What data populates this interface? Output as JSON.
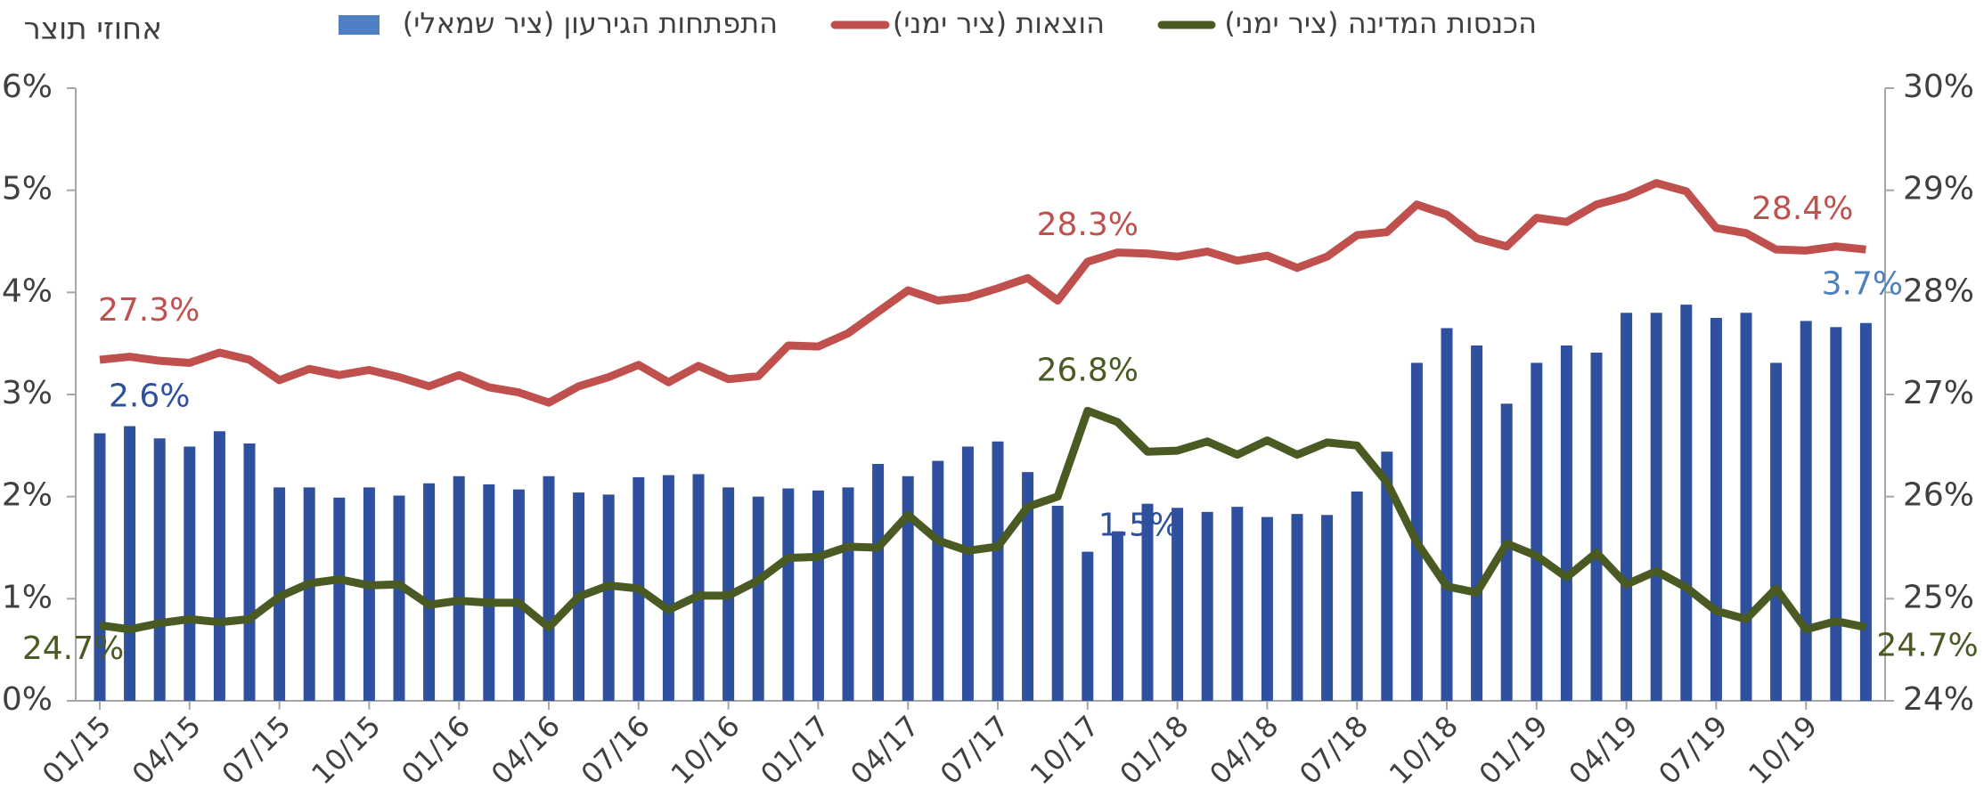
{
  "chart_data": {
    "type": "bar",
    "y_axis_label": "אחוזי תוצר",
    "categories": [
      "01/15",
      null,
      null,
      "04/15",
      null,
      null,
      "07/15",
      null,
      null,
      "10/15",
      null,
      null,
      "01/16",
      null,
      null,
      "04/16",
      null,
      null,
      "07/16",
      null,
      null,
      "10/16",
      null,
      null,
      "01/17",
      null,
      null,
      "04/17",
      null,
      null,
      "07/17",
      null,
      null,
      "10/17",
      null,
      null,
      "01/18",
      null,
      null,
      "04/18",
      null,
      null,
      "07/18",
      null,
      null,
      "10/18",
      null,
      null,
      "01/19",
      null,
      null,
      "04/19",
      null,
      null,
      "07/19",
      null,
      null,
      "10/19",
      null,
      null
    ],
    "series": [
      {
        "name": "התפתחות הגירעון (ציר שמאלי)",
        "type": "bar",
        "axis": "y",
        "color": "#2f4f9f",
        "legend_color": "#4f7fc5",
        "values": [
          2.62,
          2.69,
          2.57,
          2.49,
          2.64,
          2.52,
          2.09,
          2.09,
          1.99,
          2.09,
          2.01,
          2.13,
          2.2,
          2.12,
          2.07,
          2.2,
          2.04,
          2.02,
          2.19,
          2.21,
          2.22,
          2.09,
          2.0,
          2.08,
          2.06,
          2.09,
          2.32,
          2.2,
          2.35,
          2.49,
          2.54,
          2.24,
          1.91,
          1.46,
          1.66,
          1.93,
          1.89,
          1.85,
          1.9,
          1.8,
          1.83,
          1.82,
          2.05,
          2.44,
          3.31,
          3.65,
          3.48,
          2.91,
          3.31,
          3.48,
          3.41,
          3.8,
          3.8,
          3.88,
          3.75,
          3.8,
          3.31,
          3.72,
          3.66,
          3.7
        ],
        "value_labels": [
          "2.6%",
          null,
          null,
          null,
          null,
          null,
          null,
          null,
          null,
          null,
          null,
          null,
          null,
          null,
          null,
          null,
          null,
          null,
          null,
          null,
          null,
          null,
          null,
          null,
          null,
          null,
          null,
          null,
          null,
          null,
          null,
          null,
          null,
          "1.5%",
          null,
          null,
          null,
          null,
          null,
          null,
          null,
          null,
          null,
          null,
          null,
          null,
          null,
          null,
          null,
          null,
          null,
          null,
          null,
          null,
          null,
          null,
          null,
          null,
          null,
          "3.7%"
        ]
      },
      {
        "name": "הוצאות (ציר ימני)",
        "type": "line",
        "axis": "y2",
        "color": "#c0504d",
        "values": [
          27.34,
          27.37,
          27.33,
          27.31,
          27.41,
          27.34,
          27.14,
          27.25,
          27.19,
          27.24,
          27.17,
          27.08,
          27.19,
          27.07,
          27.02,
          26.92,
          27.08,
          27.17,
          27.29,
          27.12,
          27.28,
          27.15,
          27.18,
          27.48,
          27.47,
          27.6,
          27.81,
          28.02,
          27.92,
          27.95,
          28.04,
          28.14,
          27.92,
          28.3,
          28.39,
          28.38,
          28.35,
          28.4,
          28.31,
          28.36,
          28.24,
          28.35,
          28.56,
          28.59,
          28.86,
          28.76,
          28.53,
          28.45,
          28.73,
          28.69,
          28.86,
          28.94,
          29.07,
          28.99,
          28.63,
          28.58,
          28.42,
          28.41,
          28.45,
          28.42
        ],
        "value_labels": [
          "27.3%",
          null,
          null,
          null,
          null,
          null,
          null,
          null,
          null,
          null,
          null,
          null,
          null,
          null,
          null,
          null,
          null,
          null,
          null,
          null,
          null,
          null,
          null,
          null,
          null,
          null,
          null,
          null,
          null,
          null,
          null,
          null,
          null,
          "28.3%",
          null,
          null,
          null,
          null,
          null,
          null,
          null,
          null,
          null,
          null,
          null,
          null,
          null,
          null,
          null,
          null,
          null,
          null,
          null,
          null,
          null,
          null,
          null,
          null,
          null,
          "28.4%"
        ]
      },
      {
        "name": "הכנסות המדינה (ציר ימני)",
        "type": "line",
        "axis": "y2",
        "color": "#4a5a23",
        "values": [
          24.74,
          24.7,
          24.76,
          24.8,
          24.77,
          24.8,
          25.02,
          25.15,
          25.19,
          25.13,
          25.14,
          24.94,
          24.98,
          24.96,
          24.96,
          24.72,
          25.02,
          25.13,
          25.1,
          24.89,
          25.03,
          25.03,
          25.18,
          25.4,
          25.41,
          25.51,
          25.5,
          25.82,
          25.57,
          25.47,
          25.51,
          25.9,
          26.0,
          26.84,
          26.73,
          26.44,
          26.45,
          26.54,
          26.41,
          26.55,
          26.41,
          26.53,
          26.5,
          26.14,
          25.55,
          25.12,
          25.06,
          25.54,
          25.42,
          25.21,
          25.45,
          25.14,
          25.27,
          25.11,
          24.88,
          24.8,
          25.1,
          24.7,
          24.78,
          24.72
        ],
        "value_labels": [
          "24.7%",
          null,
          null,
          null,
          null,
          null,
          null,
          null,
          null,
          null,
          null,
          null,
          null,
          null,
          null,
          null,
          null,
          null,
          null,
          null,
          null,
          null,
          null,
          null,
          null,
          null,
          null,
          null,
          null,
          null,
          null,
          null,
          null,
          "26.8%",
          null,
          null,
          null,
          null,
          null,
          null,
          null,
          null,
          null,
          null,
          null,
          null,
          null,
          null,
          null,
          null,
          null,
          null,
          null,
          null,
          null,
          null,
          null,
          null,
          null,
          "24.7%"
        ]
      }
    ],
    "ylim": [
      0,
      6
    ],
    "yticks": [
      {
        "value": 0,
        "label": "0%"
      },
      {
        "value": 1,
        "label": "1%"
      },
      {
        "value": 2,
        "label": "2%"
      },
      {
        "value": 3,
        "label": "3%"
      },
      {
        "value": 4,
        "label": "4%"
      },
      {
        "value": 5,
        "label": "5%"
      },
      {
        "value": 6,
        "label": "6%"
      }
    ],
    "y2lim": [
      24,
      30
    ],
    "y2ticks": [
      {
        "value": 24,
        "label": "24%"
      },
      {
        "value": 25,
        "label": "25%"
      },
      {
        "value": 26,
        "label": "26%"
      },
      {
        "value": 27,
        "label": "27%"
      },
      {
        "value": 28,
        "label": "28%"
      },
      {
        "value": 29,
        "label": "29%"
      },
      {
        "value": 30,
        "label": "30%"
      }
    ],
    "legend": "top"
  }
}
